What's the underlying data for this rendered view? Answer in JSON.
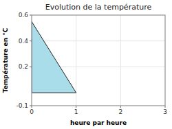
{
  "chart_data": {
    "type": "area",
    "title": "Evolution de la température",
    "x_label": "heure par heure",
    "y_label": "Température en °C",
    "x": [
      0,
      1
    ],
    "values": [
      0.55,
      0.0
    ],
    "color": "#a8dde9",
    "xlim": [
      0,
      3
    ],
    "ylim": [
      -0.1,
      0.6
    ],
    "xticks": [
      0,
      1,
      2,
      3
    ],
    "yticks": [
      -0.1,
      0.2,
      0.4,
      0.6
    ],
    "grid": true
  }
}
